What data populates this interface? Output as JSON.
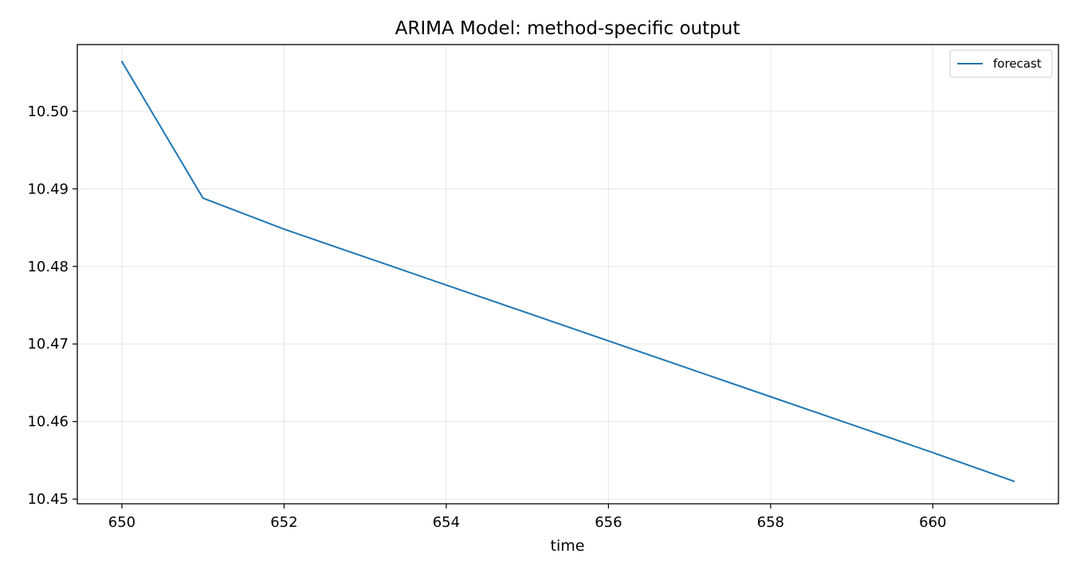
{
  "chart_data": {
    "type": "line",
    "title": "ARIMA Model: method-specific output",
    "xlabel": "time",
    "ylabel": "",
    "xlim": [
      649.45,
      661.55
    ],
    "ylim": [
      10.4494,
      10.5086
    ],
    "xticks": [
      650,
      652,
      654,
      656,
      658,
      660
    ],
    "yticks": [
      10.45,
      10.46,
      10.47,
      10.48,
      10.49,
      10.5
    ],
    "ytick_labels": [
      "10.45",
      "10.46",
      "10.47",
      "10.48",
      "10.49",
      "10.50"
    ],
    "grid": true,
    "legend_position": "top-right",
    "series": [
      {
        "name": "forecast",
        "color": "#1f77b4",
        "x": [
          650,
          651,
          652,
          653,
          654,
          655,
          656,
          657,
          658,
          659,
          660,
          661
        ],
        "values": [
          10.5064,
          10.4888,
          10.4848,
          10.4812,
          10.4776,
          10.474,
          10.4704,
          10.4668,
          10.4632,
          10.4596,
          10.456,
          10.4523
        ]
      }
    ]
  }
}
